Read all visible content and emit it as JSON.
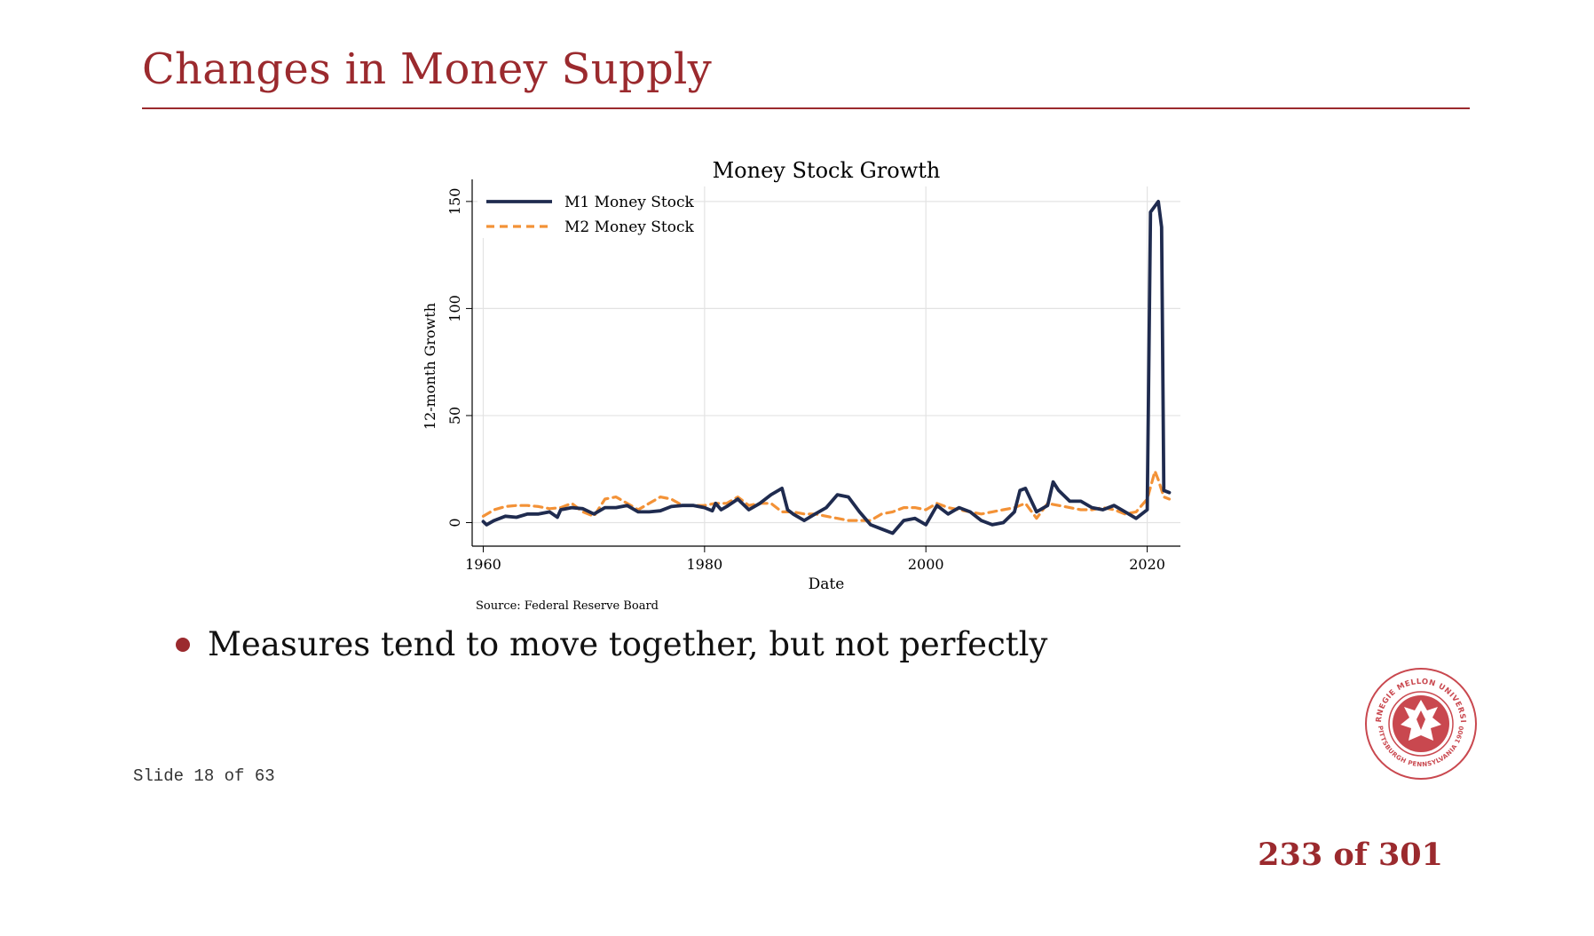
{
  "slide": {
    "title": "Changes in Money Supply",
    "bullet": "Measures tend to move together, but not perfectly",
    "slide_counter": "Slide 18 of 63",
    "page_counter": "233 of 301"
  },
  "seal": {
    "text_top": "CARNEGIE MELLON UNIVERSITY",
    "text_bottom": "PITTSBURGH PENNSYLVANIA 1900"
  },
  "colors": {
    "accent": "#9b2a2e",
    "m1": "#1f2b4f",
    "m2": "#f39237",
    "grid": "#e3e3e3"
  },
  "chart_data": {
    "type": "line",
    "title": "Money Stock Growth",
    "xlabel": "Date",
    "ylabel": "12-month Growth",
    "source_note": "Source: Federal Reserve Board",
    "xlim": [
      1959,
      2023
    ],
    "ylim": [
      -11,
      157
    ],
    "x_ticks": [
      1960,
      1980,
      2000,
      2020
    ],
    "y_ticks": [
      0,
      50,
      100,
      150
    ],
    "grid": true,
    "legend_position": "top-left",
    "series": [
      {
        "name": "M1 Money Stock",
        "style": "solid",
        "points": [
          [
            1960,
            0.5
          ],
          [
            1960.3,
            -1
          ],
          [
            1961,
            1
          ],
          [
            1962,
            3
          ],
          [
            1963,
            2.5
          ],
          [
            1964,
            4
          ],
          [
            1965,
            4
          ],
          [
            1966,
            5
          ],
          [
            1966.7,
            2.5
          ],
          [
            1967,
            6
          ],
          [
            1968,
            7
          ],
          [
            1969,
            6.5
          ],
          [
            1970,
            4
          ],
          [
            1971,
            7
          ],
          [
            1972,
            7
          ],
          [
            1973,
            8
          ],
          [
            1974,
            5
          ],
          [
            1975,
            5
          ],
          [
            1976,
            5.5
          ],
          [
            1977,
            7.5
          ],
          [
            1978,
            8
          ],
          [
            1979,
            8
          ],
          [
            1980,
            7
          ],
          [
            1980.7,
            5.5
          ],
          [
            1981,
            9
          ],
          [
            1981.5,
            6
          ],
          [
            1982,
            7.5
          ],
          [
            1983,
            11
          ],
          [
            1984,
            6
          ],
          [
            1985,
            9
          ],
          [
            1986,
            13
          ],
          [
            1987,
            16
          ],
          [
            1987.5,
            6
          ],
          [
            1988,
            4
          ],
          [
            1989,
            1
          ],
          [
            1990,
            4
          ],
          [
            1991,
            7
          ],
          [
            1992,
            13
          ],
          [
            1993,
            12
          ],
          [
            1994,
            5
          ],
          [
            1995,
            -1
          ],
          [
            1996,
            -3
          ],
          [
            1997,
            -5
          ],
          [
            1998,
            1
          ],
          [
            1999,
            2
          ],
          [
            2000,
            -1
          ],
          [
            2001,
            8
          ],
          [
            2002,
            4
          ],
          [
            2003,
            7
          ],
          [
            2004,
            5
          ],
          [
            2005,
            1
          ],
          [
            2006,
            -1
          ],
          [
            2007,
            0
          ],
          [
            2008,
            5
          ],
          [
            2008.5,
            15
          ],
          [
            2009,
            16
          ],
          [
            2010,
            5
          ],
          [
            2011,
            8
          ],
          [
            2011.5,
            19
          ],
          [
            2012,
            15
          ],
          [
            2013,
            10
          ],
          [
            2014,
            10
          ],
          [
            2015,
            7
          ],
          [
            2016,
            6
          ],
          [
            2017,
            8
          ],
          [
            2018,
            5
          ],
          [
            2019,
            2
          ],
          [
            2020,
            6
          ],
          [
            2020.3,
            145
          ],
          [
            2021,
            150
          ],
          [
            2021.3,
            138
          ],
          [
            2021.5,
            15
          ],
          [
            2022,
            14
          ]
        ]
      },
      {
        "name": "M2 Money Stock",
        "style": "dashed",
        "points": [
          [
            1960,
            3
          ],
          [
            1961,
            6
          ],
          [
            1962,
            7.5
          ],
          [
            1963,
            8
          ],
          [
            1964,
            8
          ],
          [
            1965,
            7.5
          ],
          [
            1966,
            6.5
          ],
          [
            1967,
            7
          ],
          [
            1968,
            9
          ],
          [
            1969,
            5
          ],
          [
            1970,
            3
          ],
          [
            1971,
            11
          ],
          [
            1972,
            12
          ],
          [
            1973,
            9
          ],
          [
            1974,
            6
          ],
          [
            1975,
            9
          ],
          [
            1976,
            12
          ],
          [
            1977,
            11
          ],
          [
            1978,
            8
          ],
          [
            1979,
            8
          ],
          [
            1980,
            8
          ],
          [
            1981,
            9
          ],
          [
            1982,
            9
          ],
          [
            1983,
            12
          ],
          [
            1984,
            8
          ],
          [
            1985,
            9
          ],
          [
            1986,
            9
          ],
          [
            1987,
            5
          ],
          [
            1988,
            5
          ],
          [
            1989,
            4
          ],
          [
            1990,
            4
          ],
          [
            1991,
            3
          ],
          [
            1992,
            2
          ],
          [
            1993,
            1
          ],
          [
            1994,
            1
          ],
          [
            1995,
            1
          ],
          [
            1996,
            4
          ],
          [
            1997,
            5
          ],
          [
            1998,
            7
          ],
          [
            1999,
            7
          ],
          [
            2000,
            6
          ],
          [
            2001,
            9
          ],
          [
            2002,
            7
          ],
          [
            2003,
            6
          ],
          [
            2004,
            5
          ],
          [
            2005,
            4
          ],
          [
            2006,
            5
          ],
          [
            2007,
            6
          ],
          [
            2008,
            7
          ],
          [
            2009,
            9
          ],
          [
            2010,
            2
          ],
          [
            2011,
            9
          ],
          [
            2012,
            8
          ],
          [
            2013,
            7
          ],
          [
            2014,
            6
          ],
          [
            2015,
            6
          ],
          [
            2016,
            7
          ],
          [
            2017,
            6
          ],
          [
            2018,
            4
          ],
          [
            2019,
            5
          ],
          [
            2020,
            11
          ],
          [
            2020.7,
            24
          ],
          [
            2021,
            20
          ],
          [
            2021.5,
            12
          ],
          [
            2022,
            11
          ]
        ]
      }
    ]
  }
}
